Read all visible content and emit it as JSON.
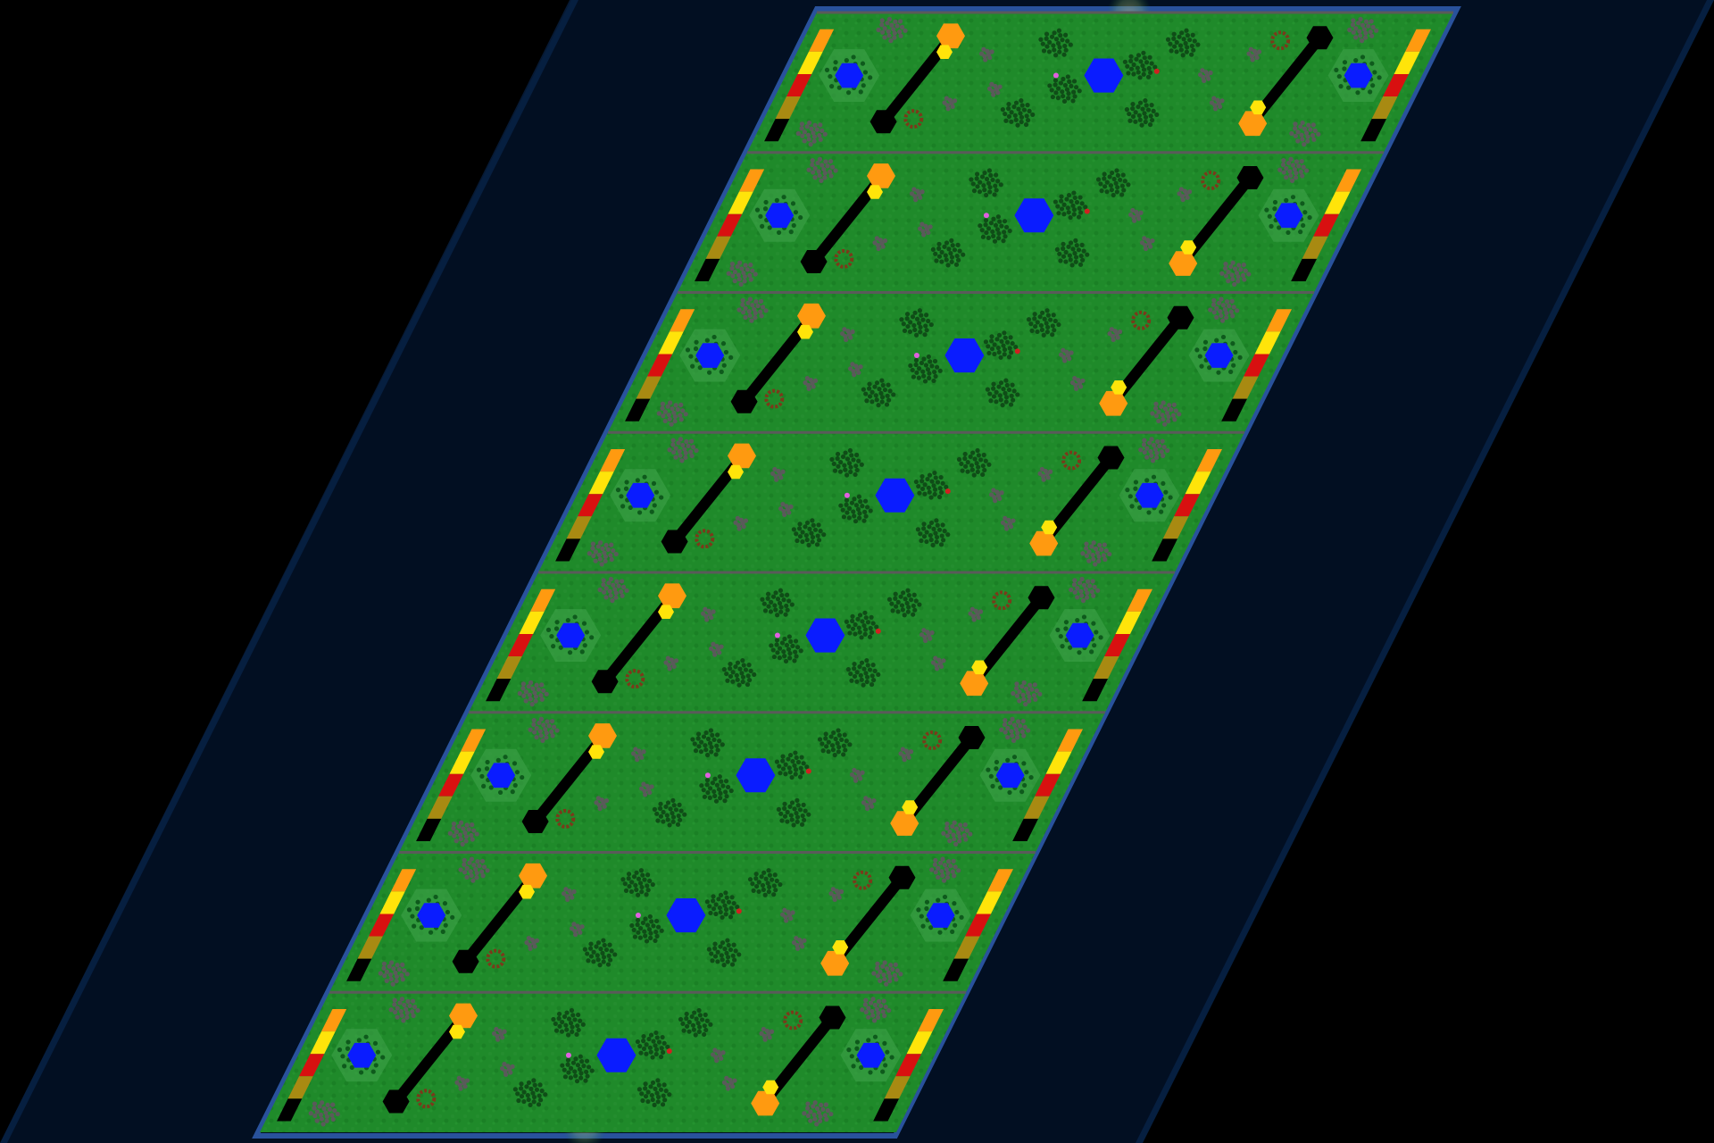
{
  "map": {
    "lane_count": 8,
    "colors": {
      "background": "#000000",
      "water": "#020f22",
      "water_edge": "#0a2a55",
      "grass": "#1f8a2a",
      "grass_dark": "#15641d",
      "divider": "#5a5a5a",
      "pool": "#0a1cff",
      "pool_ring": "#0e5a1c",
      "orange": "#ff9a10",
      "yellow": "#ffe40a",
      "red": "#d81010",
      "olive": "#a88a12",
      "black": "#000000",
      "rock": "#5a5a5a",
      "path": "#b89a68",
      "ring": "#7a3a1a"
    },
    "lane_icons": [
      "left-stripe-icon",
      "outer-pool-icon",
      "rock-cluster-icon",
      "bridge-icon",
      "tree-cluster-icon",
      "center-pool-icon",
      "ring-marker-icon",
      "right-stripe-icon"
    ]
  }
}
